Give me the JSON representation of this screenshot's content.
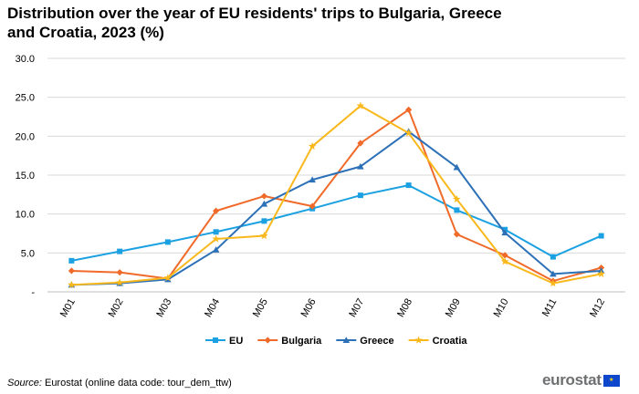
{
  "title_line1": "Distribution over the year of EU residents' trips to Bulgaria, Greece",
  "title_line2": "and Croatia, 2023 (%)",
  "source": {
    "label": "Source:",
    "text": " Eurostat (online data code: tour_dem_ttw)"
  },
  "logo": {
    "text": "eurostat",
    "flag_icon": "eu-flag-icon"
  },
  "chart_data": {
    "type": "line",
    "categories": [
      "M01",
      "M02",
      "M03",
      "M04",
      "M05",
      "M06",
      "M07",
      "M08",
      "M09",
      "M10",
      "M11",
      "M12"
    ],
    "ylim": [
      0,
      30
    ],
    "yticks": [
      0,
      5,
      10,
      15,
      20,
      25,
      30
    ],
    "ytick_labels": [
      "-",
      "5.0",
      "10.0",
      "15.0",
      "20.0",
      "25.0",
      "30.0"
    ],
    "grid": true,
    "legend_position": "bottom",
    "series": [
      {
        "name": "EU",
        "color": "#1ba1e2",
        "marker": "square",
        "values": [
          4.0,
          5.2,
          6.4,
          7.7,
          9.1,
          10.7,
          12.4,
          13.7,
          10.5,
          8.0,
          4.5,
          7.2
        ]
      },
      {
        "name": "Bulgaria",
        "color": "#f06a2a",
        "marker": "diamond",
        "values": [
          2.7,
          2.5,
          1.7,
          10.4,
          12.3,
          11.0,
          19.1,
          23.4,
          7.4,
          4.7,
          1.4,
          3.1
        ]
      },
      {
        "name": "Greece",
        "color": "#2c70b7",
        "marker": "triangle",
        "values": [
          0.9,
          1.1,
          1.6,
          5.4,
          11.3,
          14.4,
          16.1,
          20.6,
          16.0,
          7.6,
          2.3,
          2.7
        ]
      },
      {
        "name": "Croatia",
        "color": "#f9b81b",
        "marker": "star",
        "values": [
          0.9,
          1.2,
          1.8,
          6.8,
          7.2,
          18.7,
          23.9,
          20.4,
          11.9,
          3.9,
          1.1,
          2.3
        ]
      }
    ]
  }
}
